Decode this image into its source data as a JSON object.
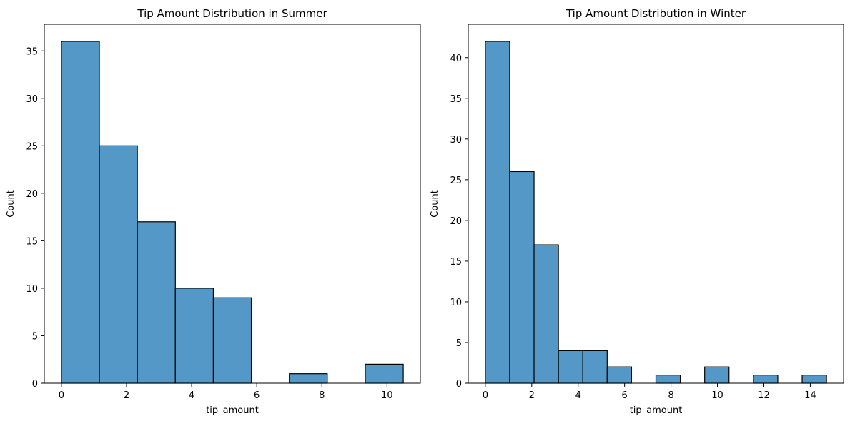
{
  "chart_data": [
    {
      "type": "bar",
      "title": "Tip Amount Distribution in Summer",
      "xlabel": "tip_amount",
      "ylabel": "Count",
      "xlim": [
        -0.525,
        11.025
      ],
      "ylim": [
        0,
        37.8
      ],
      "xticks": [
        0,
        2,
        4,
        6,
        8,
        10
      ],
      "yticks": [
        0,
        5,
        10,
        15,
        20,
        25,
        30,
        35
      ],
      "bin_edges": [
        0,
        1.1667,
        2.3333,
        3.5,
        4.6667,
        5.8333,
        7.0,
        8.1667,
        9.3333,
        10.5
      ],
      "values": [
        36,
        25,
        17,
        10,
        9,
        0,
        1,
        0,
        2
      ],
      "bar_color": "#5498c8",
      "edge_color": "#000000",
      "grid": false
    },
    {
      "type": "bar",
      "title": "Tip Amount Distribution in Winter",
      "xlabel": "tip_amount",
      "ylabel": "Count",
      "xlim": [
        -0.735,
        15.435
      ],
      "ylim": [
        0,
        44.1
      ],
      "xticks": [
        0,
        2,
        4,
        6,
        8,
        10,
        12,
        14
      ],
      "yticks": [
        0,
        5,
        10,
        15,
        20,
        25,
        30,
        35,
        40
      ],
      "bin_edges": [
        0,
        1.05,
        2.1,
        3.15,
        4.2,
        5.25,
        6.3,
        7.35,
        8.4,
        9.45,
        10.5,
        11.55,
        12.6,
        13.65,
        14.7
      ],
      "values": [
        42,
        26,
        17,
        4,
        4,
        2,
        0,
        1,
        0,
        2,
        0,
        1,
        0,
        1
      ],
      "bar_color": "#5498c8",
      "edge_color": "#000000",
      "grid": false
    }
  ]
}
